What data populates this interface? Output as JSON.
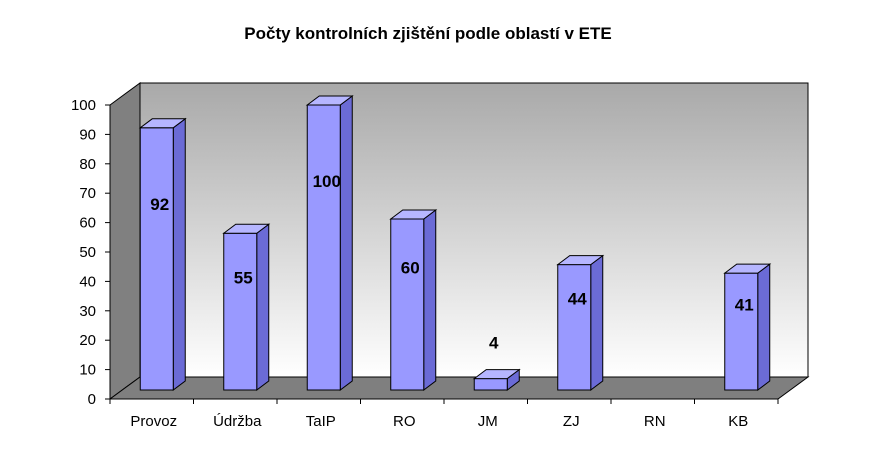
{
  "chart_data": {
    "type": "bar",
    "title": "Počty kontrolních zjištění podle oblastí v ETE",
    "categories": [
      "Provoz",
      "Údržba",
      "TaIP",
      "RO",
      "JM",
      "ZJ",
      "RN",
      "KB"
    ],
    "values": [
      92,
      55,
      100,
      60,
      4,
      44,
      0,
      41
    ],
    "data_labels": [
      "92",
      "55",
      "100",
      "60",
      "4",
      "44",
      "",
      "41"
    ],
    "ylim": [
      0,
      100
    ],
    "yticks": [
      0,
      10,
      20,
      30,
      40,
      50,
      60,
      70,
      80,
      90,
      100
    ],
    "xlabel": "",
    "ylabel": "",
    "grid": false,
    "legend": "none",
    "style": "3d-column",
    "colors": {
      "bar_front": "#9999ff",
      "bar_top": "#b6b6ff",
      "bar_side": "#6b6bd6",
      "back_wall_top": "#a9a9a9",
      "back_wall_bottom": "#ffffff",
      "side_wall": "#808080",
      "floor": "#7f7f7f"
    }
  }
}
